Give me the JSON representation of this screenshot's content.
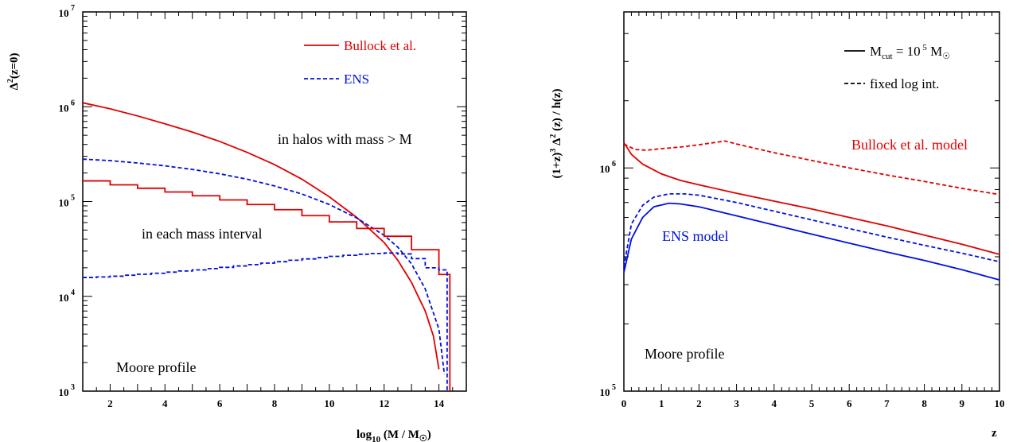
{
  "colors": {
    "red": "#e00000",
    "blue": "#0010e0",
    "black": "#000000"
  },
  "chart_data": [
    {
      "type": "line",
      "ylabel_base": "Δ",
      "ylabel_sup": "2",
      "ylabel_rest": "(z=0)",
      "xlabel_main": "log",
      "xlabel_sub": "10",
      "xlabel_rest": " (M / M",
      "xlabel_sub2": "☉",
      "xlabel_close": ")",
      "yscale": "log",
      "xlim": [
        1,
        15
      ],
      "ylim": [
        1000,
        10000000
      ],
      "xticks": [
        "2",
        "4",
        "6",
        "8",
        "10",
        "12",
        "14"
      ],
      "yticks": [
        {
          "base": "10",
          "exp": "3",
          "v": 1000
        },
        {
          "base": "10",
          "exp": "4",
          "v": 10000
        },
        {
          "base": "10",
          "exp": "5",
          "v": 100000
        },
        {
          "base": "10",
          "exp": "6",
          "v": 1000000
        },
        {
          "base": "10",
          "exp": "7",
          "v": 10000000
        }
      ],
      "legend": [
        {
          "label": "Bullock et al.",
          "style": "solid",
          "color": "red"
        },
        {
          "label": "ENS",
          "style": "dashed",
          "color": "blue"
        }
      ],
      "annotations": [
        "in halos with mass > M",
        "in each mass interval",
        "Moore profile"
      ],
      "series": [
        {
          "name": "Bullock et al.",
          "color": "red",
          "style": "solid",
          "x": [
            1,
            2,
            3,
            4,
            5,
            6,
            7,
            8,
            9,
            10,
            11,
            12,
            12.5,
            13,
            13.5,
            13.8,
            14
          ],
          "y": [
            1100000,
            950000,
            800000,
            660000,
            540000,
            430000,
            330000,
            245000,
            172000,
            112000,
            68000,
            37000,
            24000,
            14000,
            7000,
            3800,
            1700
          ]
        },
        {
          "name": "ENS",
          "color": "blue",
          "style": "dashed",
          "x": [
            1,
            2,
            3,
            4,
            5,
            6,
            7,
            8,
            9,
            10,
            11,
            12,
            12.5,
            13,
            13.5,
            14,
            14.2
          ],
          "y": [
            280000,
            270000,
            255000,
            238000,
            218000,
            196000,
            172000,
            146000,
            120000,
            93000,
            67000,
            44000,
            33000,
            22000,
            12000,
            4500,
            1500
          ]
        },
        {
          "name": "Bullock et al. (bins)",
          "color": "red",
          "style": "step",
          "x": [
            1,
            2,
            3,
            4,
            5,
            6,
            7,
            8,
            9,
            10,
            11,
            12,
            13,
            14,
            14.4
          ],
          "y": [
            165000,
            150000,
            138000,
            126000,
            115000,
            104000,
            93000,
            82000,
            71000,
            61000,
            52000,
            43000,
            31000,
            17000,
            2200
          ]
        },
        {
          "name": "ENS (bins)",
          "color": "blue",
          "style": "dashed-step",
          "x": [
            1,
            1.5,
            2,
            2.5,
            3,
            3.5,
            4,
            4.5,
            5,
            5.5,
            6,
            6.5,
            7,
            7.5,
            8,
            8.5,
            9,
            9.5,
            10,
            10.5,
            11,
            11.5,
            12,
            12.5,
            13,
            13.5,
            14,
            14.3
          ],
          "y": [
            15800,
            16000,
            16300,
            16700,
            17100,
            17500,
            18000,
            18500,
            19000,
            19600,
            20200,
            20900,
            21600,
            22400,
            23200,
            24000,
            24800,
            25600,
            26400,
            27100,
            27800,
            28300,
            28600,
            28000,
            25000,
            20000,
            19000,
            3500
          ]
        }
      ]
    },
    {
      "type": "line",
      "ylabel": "(1+z)",
      "ylabel_sup1": "3",
      "ylabel_mid": " Δ",
      "ylabel_sup2": "2",
      "ylabel_end": " (z) / h(z)",
      "xlabel": "z",
      "yscale": "log",
      "xlim": [
        0,
        10
      ],
      "ylim": [
        100000,
        5000000
      ],
      "xticks": [
        "0",
        "1",
        "2",
        "3",
        "4",
        "5",
        "6",
        "7",
        "8",
        "9",
        "10"
      ],
      "yticks": [
        {
          "base": "10",
          "exp": "5",
          "v": 100000
        },
        {
          "base": "10",
          "exp": "6",
          "v": 1000000
        }
      ],
      "legend": [
        {
          "label_main": "M",
          "label_sub": "cut",
          "label_eq": " = 10",
          "label_sup": " 5",
          "label_m": " M",
          "label_sub2": "☉",
          "style": "solid",
          "color": "black"
        },
        {
          "label": "fixed log int.",
          "style": "dashed",
          "color": "black"
        }
      ],
      "annotations": [
        "Bullock et al. model",
        "ENS model",
        "Moore profile"
      ],
      "series": [
        {
          "name": "Bullock et al. model",
          "color": "red",
          "style": "solid",
          "x": [
            0,
            0.2,
            0.5,
            1,
            1.5,
            2,
            3,
            4,
            5,
            6,
            7,
            8,
            9,
            10
          ],
          "y": [
            1300000,
            1150000,
            1040000,
            940000,
            880000,
            840000,
            770000,
            710000,
            655000,
            600000,
            550000,
            500000,
            455000,
            410000
          ]
        },
        {
          "name": "Bullock et al. model (fixed log int.)",
          "color": "red",
          "style": "dashed",
          "x": [
            0,
            0.3,
            0.6,
            1,
            1.5,
            2,
            2.7,
            3,
            4,
            5,
            6,
            7,
            8,
            9,
            10
          ],
          "y": [
            1280000,
            1210000,
            1200000,
            1220000,
            1240000,
            1270000,
            1320000,
            1280000,
            1170000,
            1080000,
            1000000,
            930000,
            870000,
            810000,
            760000
          ]
        },
        {
          "name": "ENS model",
          "color": "blue",
          "style": "solid",
          "x": [
            0,
            0.2,
            0.5,
            0.8,
            1.2,
            1.5,
            2,
            3,
            4,
            5,
            6,
            7,
            8,
            9,
            10
          ],
          "y": [
            340000,
            480000,
            600000,
            670000,
            695000,
            690000,
            670000,
            610000,
            555000,
            505000,
            460000,
            420000,
            385000,
            350000,
            315000
          ]
        },
        {
          "name": "ENS model (fixed log int.)",
          "color": "blue",
          "style": "dashed",
          "x": [
            0,
            0.2,
            0.5,
            0.8,
            1.2,
            1.6,
            2,
            3,
            4,
            5,
            6,
            7,
            8,
            9,
            10
          ],
          "y": [
            360000,
            560000,
            680000,
            740000,
            765000,
            765000,
            755000,
            700000,
            640000,
            585000,
            535000,
            490000,
            450000,
            415000,
            380000
          ]
        }
      ]
    }
  ]
}
